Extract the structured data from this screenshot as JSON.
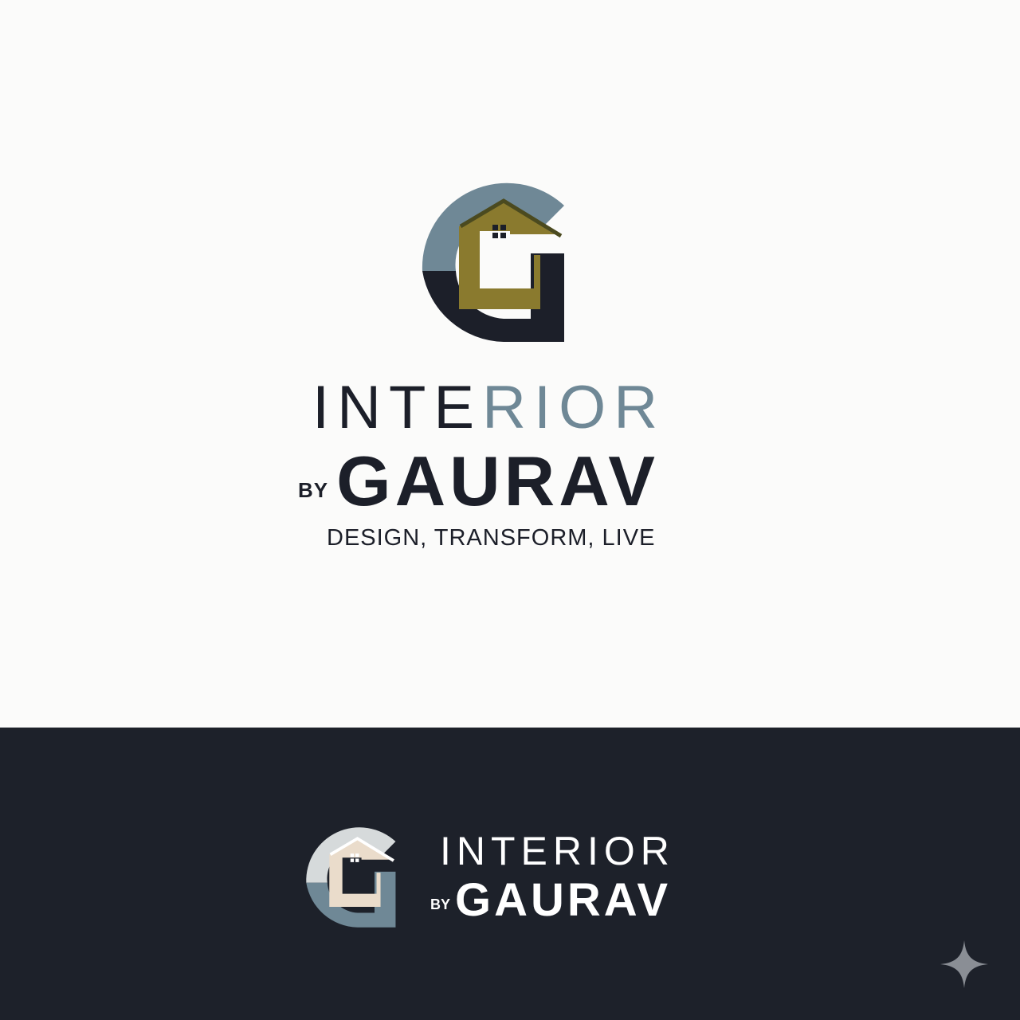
{
  "light": {
    "interior_part_a": "INTE",
    "interior_part_b": "RIOR",
    "by": "BY",
    "name": "GAURAV",
    "tagline": "DESIGN, TRANSFORM, LIVE"
  },
  "dark": {
    "interior": "INTERIOR",
    "by": "BY",
    "name": "GAURAV"
  },
  "colors": {
    "background_light": "#fbfbfa",
    "background_dark": "#1d212a",
    "navy": "#1c1f29",
    "slate_blue": "#6f8896",
    "olive_gold": "#8a7a2e",
    "cream": "#eadccb"
  },
  "icons": {
    "logo_mark": "g-house-monogram-icon",
    "corner": "sparkle-icon"
  }
}
